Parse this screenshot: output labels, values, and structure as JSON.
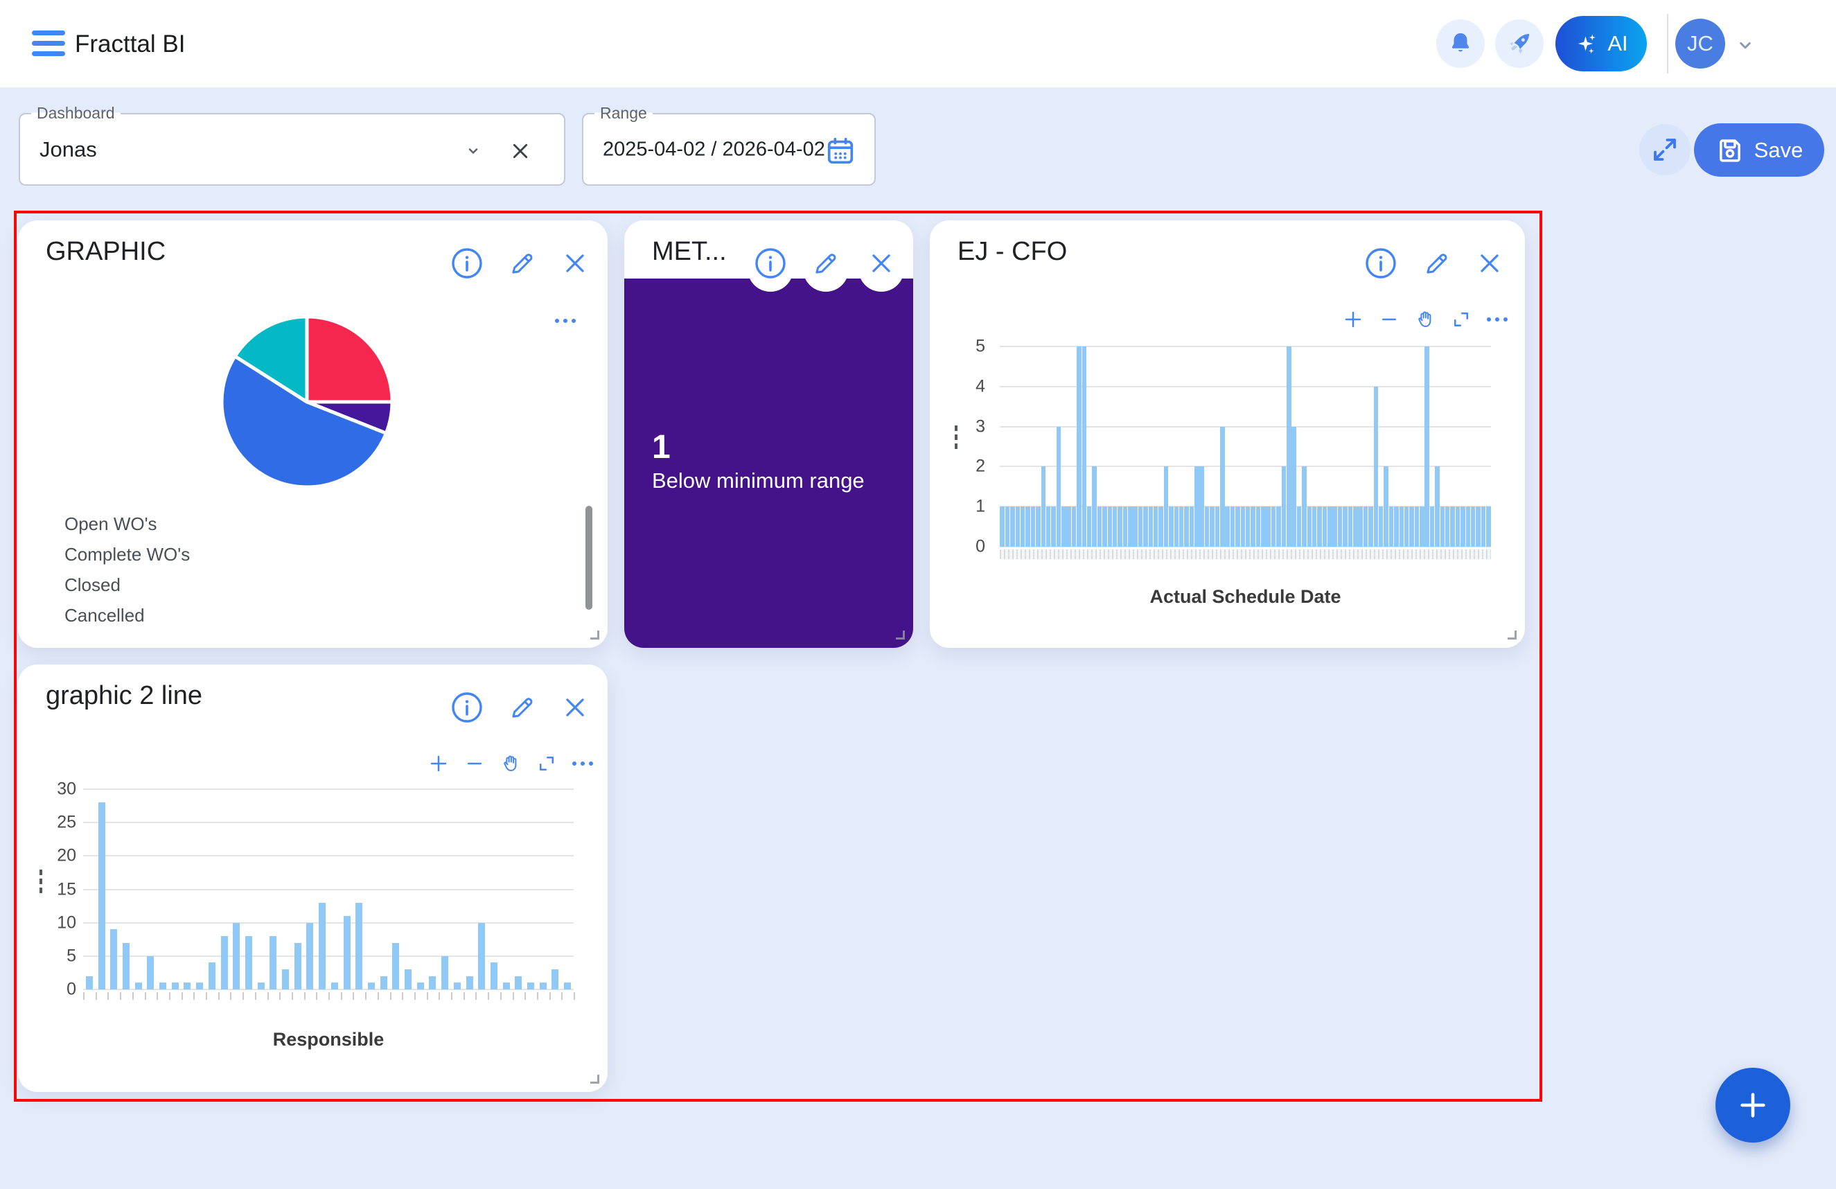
{
  "topbar": {
    "title": "Fracttal BI",
    "ai_label": "AI",
    "avatar_initials": "JC"
  },
  "controls": {
    "dashboard_label": "Dashboard",
    "dashboard_value": "Jonas",
    "range_label": "Range",
    "range_value": "2025-04-02 / 2026-04-02",
    "save_label": "Save"
  },
  "metric_card": {
    "title": "MET...",
    "value": "1",
    "caption": "Below minimum range",
    "bg_color": "#44138A"
  },
  "chart_data": [
    {
      "id": "pie",
      "type": "pie",
      "title": "GRAPHIC",
      "legend": [
        "Open WO's",
        "Complete WO's",
        "Closed",
        "Cancelled"
      ],
      "legend_position": "bottom-left",
      "slices": [
        {
          "label": "Open WO's",
          "pct": 25,
          "color": "#F6274E"
        },
        {
          "label": "Complete WO's",
          "pct": 6,
          "color": "#45189B"
        },
        {
          "label": "Closed",
          "pct": 53,
          "color": "#2F6CE5"
        },
        {
          "label": "Cancelled",
          "pct": 16,
          "color": "#04B8C6"
        }
      ]
    },
    {
      "id": "ej_cfo",
      "type": "bar",
      "title": "EJ - CFO",
      "xlabel": "Actual Schedule Date",
      "ylim": [
        0,
        5
      ],
      "yticks": [
        0,
        1,
        2,
        3,
        4,
        5
      ],
      "grid": true,
      "xaxis_ticks": "dense",
      "bar_color": "#90C9F5",
      "values": [
        1,
        1,
        1,
        1,
        1,
        1,
        1,
        1,
        2,
        1,
        1,
        3,
        1,
        1,
        1,
        5,
        5,
        1,
        2,
        1,
        1,
        1,
        1,
        1,
        1,
        1,
        1,
        1,
        1,
        1,
        1,
        1,
        2,
        1,
        1,
        1,
        1,
        1,
        2,
        2,
        1,
        1,
        1,
        3,
        1,
        1,
        1,
        1,
        1,
        1,
        1,
        1,
        1,
        1,
        1,
        2,
        5,
        3,
        1,
        2,
        1,
        1,
        1,
        1,
        1,
        1,
        1,
        1,
        1,
        1,
        1,
        1,
        1,
        4,
        1,
        2,
        1,
        1,
        1,
        1,
        1,
        1,
        1,
        5,
        1,
        2,
        1,
        1,
        1,
        1,
        1,
        1,
        1,
        1,
        1,
        1
      ]
    },
    {
      "id": "graphic2",
      "type": "bar",
      "title": "graphic 2 line",
      "xlabel": "Responsible",
      "ylim": [
        0,
        30
      ],
      "yticks": [
        0,
        5,
        10,
        15,
        20,
        25,
        30
      ],
      "grid": true,
      "xaxis_ticks": "per-bar",
      "bar_color": "#90C9F5",
      "values": [
        2,
        28,
        9,
        7,
        1,
        5,
        1,
        1,
        1,
        1,
        4,
        8,
        10,
        8,
        1,
        8,
        3,
        7,
        10,
        13,
        1,
        11,
        13,
        1,
        2,
        7,
        3,
        1,
        2,
        5,
        1,
        2,
        10,
        4,
        1,
        2,
        1,
        1,
        3,
        1
      ]
    }
  ]
}
